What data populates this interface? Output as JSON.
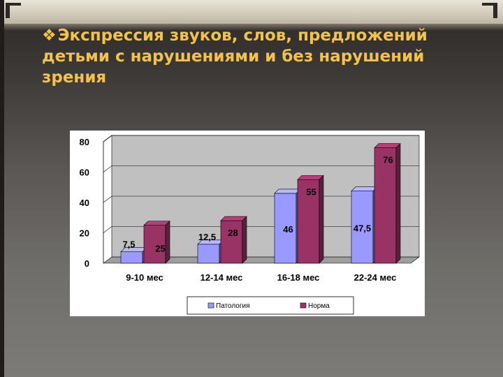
{
  "title": {
    "bullet": "❖",
    "text": "Экспрессия звуков, слов, предложений детьми с нарушениями и без нарушений зрения"
  },
  "colors": {
    "title": "#f2c24a",
    "pathology": "#9999ff",
    "norm": "#993366",
    "plot_background": "#c0c0c0"
  },
  "chart_data": {
    "type": "bar",
    "title": "",
    "xlabel": "",
    "ylabel": "",
    "ylim": [
      0,
      80
    ],
    "yticks": [
      "0",
      "20",
      "40",
      "60",
      "80"
    ],
    "categories": [
      "9-10 мес",
      "12-14 мес",
      "16-18 мес",
      "22-24 мес"
    ],
    "series": [
      {
        "name": "Патология",
        "values": [
          7.5,
          12.5,
          46,
          47.5
        ],
        "labels": [
          "7,5",
          "12,5",
          "46",
          "47,5"
        ]
      },
      {
        "name": "Норма",
        "values": [
          25,
          28,
          55,
          76
        ],
        "labels": [
          "25",
          "28",
          "55",
          "76"
        ]
      }
    ],
    "grid": true,
    "legend": "bottom"
  }
}
